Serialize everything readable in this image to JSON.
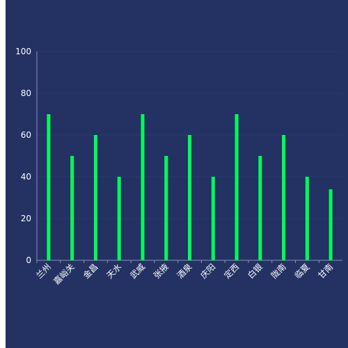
{
  "chart_data": {
    "type": "bar",
    "categories": [
      "兰州",
      "嘉峪关",
      "金昌",
      "天水",
      "武威",
      "张掖",
      "酒泉",
      "庆阳",
      "定西",
      "白银",
      "陇南",
      "临夏",
      "甘南"
    ],
    "values": [
      70,
      50,
      60,
      40,
      70,
      50,
      60,
      40,
      70,
      50,
      60,
      40,
      34
    ],
    "ylim": [
      0,
      100
    ],
    "yticks": [
      0,
      20,
      40,
      60,
      80,
      100
    ],
    "grid": true,
    "colors": {
      "background": "#233163",
      "bar": "#00ff55",
      "grid": "#2a3a6e",
      "axis": "#8a94b8",
      "text": "#ffffff"
    }
  }
}
